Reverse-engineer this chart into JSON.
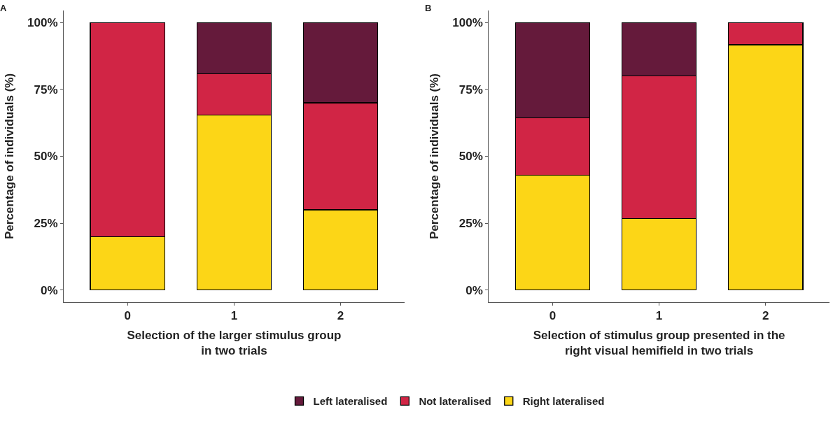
{
  "chart_data": [
    {
      "type": "bar",
      "title": "A",
      "stacked": true,
      "categories": [
        "0",
        "1",
        "2"
      ],
      "xlabel": "Selection of the larger stimulus group\nin two trials",
      "ylabel": "Percentage of individuals (%)",
      "ylim": [
        -4.5,
        104.5
      ],
      "yticks": [
        {
          "value": 0,
          "label": "0%"
        },
        {
          "value": 25,
          "label": "25%"
        },
        {
          "value": 50,
          "label": "50%"
        },
        {
          "value": 75,
          "label": "75%"
        },
        {
          "value": 100,
          "label": "100%"
        }
      ],
      "legend": "bottom",
      "series": [
        {
          "name": "Right lateralised",
          "color": "#fcd617",
          "values": [
            20,
            65.4,
            30
          ]
        },
        {
          "name": "Not lateralised",
          "color": "#d12545",
          "values": [
            80,
            15.4,
            40
          ]
        },
        {
          "name": "Left lateralised",
          "color": "#651a3b",
          "values": [
            null,
            19.2,
            30
          ]
        }
      ]
    },
    {
      "type": "bar",
      "title": "B",
      "stacked": true,
      "categories": [
        "0",
        "1",
        "2"
      ],
      "xlabel": "Selection of stimulus group presented in the\nright visual hemifield in two trials",
      "ylabel": "Percentage of individuals (%)",
      "ylim": [
        -4.5,
        104.5
      ],
      "yticks": [
        {
          "value": 0,
          "label": "0%"
        },
        {
          "value": 25,
          "label": "25%"
        },
        {
          "value": 50,
          "label": "50%"
        },
        {
          "value": 75,
          "label": "75%"
        },
        {
          "value": 100,
          "label": "100%"
        }
      ],
      "legend": "bottom",
      "series": [
        {
          "name": "Right lateralised",
          "color": "#fcd617",
          "values": [
            42.9,
            26.7,
            91.7
          ]
        },
        {
          "name": "Not lateralised",
          "color": "#d12545",
          "values": [
            21.4,
            53.3,
            8.3
          ]
        },
        {
          "name": "Left lateralised",
          "color": "#651a3b",
          "values": [
            35.7,
            20,
            null
          ]
        }
      ]
    }
  ]
}
